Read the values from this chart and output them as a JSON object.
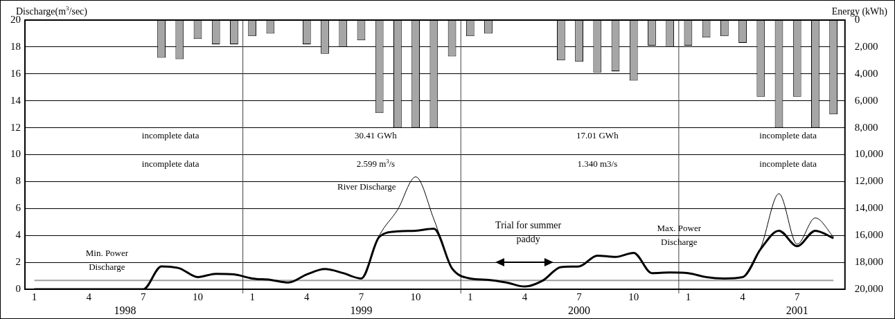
{
  "chart_data": {
    "type": "bar",
    "ylabel": "Discharge(m$^{3}$/sec)",
    "y2label": "Energy (kWh)",
    "x": [
      "1998-01",
      "1998-02",
      "1998-03",
      "1998-04",
      "1998-05",
      "1998-06",
      "1998-07",
      "1998-08",
      "1998-09",
      "1998-10",
      "1998-11",
      "1998-12",
      "1999-01",
      "1999-02",
      "1999-03",
      "1999-04",
      "1999-05",
      "1999-06",
      "1999-07",
      "1999-08",
      "1999-09",
      "1999-10",
      "1999-11",
      "1999-12",
      "2000-01",
      "2000-02",
      "2000-03",
      "2000-04",
      "2000-05",
      "2000-06",
      "2000-07",
      "2000-08",
      "2000-09",
      "2000-10",
      "2000-11",
      "2000-12",
      "2001-01",
      "2001-02",
      "2001-03",
      "2001-04",
      "2001-05",
      "2001-06",
      "2001-07",
      "2001-08",
      "2001-09"
    ],
    "xlim": [
      "1997-12-16",
      "2001-09-20"
    ],
    "xticks": [
      {
        "value": "1998-01",
        "label": "1"
      },
      {
        "value": "1998-04",
        "label": "4"
      },
      {
        "value": "1998-07",
        "label": "7"
      },
      {
        "value": "1998-10",
        "label": "10"
      },
      {
        "value": "1999-01",
        "label": "1"
      },
      {
        "value": "1999-04",
        "label": "4"
      },
      {
        "value": "1999-07",
        "label": "7"
      },
      {
        "value": "1999-10",
        "label": "10"
      },
      {
        "value": "2000-01",
        "label": "1"
      },
      {
        "value": "2000-04",
        "label": "4"
      },
      {
        "value": "2000-07",
        "label": "7"
      },
      {
        "value": "2000-10",
        "label": "10"
      },
      {
        "value": "2001-01",
        "label": "1"
      },
      {
        "value": "2001-04",
        "label": "4"
      },
      {
        "value": "2001-07",
        "label": "7"
      }
    ],
    "ylim": [
      0,
      20
    ],
    "yticks": [
      0,
      2,
      4,
      6,
      8,
      10,
      12,
      14,
      16,
      18,
      20
    ],
    "y2lim": [
      20000,
      0
    ],
    "y2ticks": [
      0,
      {
        "value": 2000,
        "label": "2,000"
      },
      {
        "value": 4000,
        "label": "4,000"
      },
      {
        "value": 6000,
        "label": "6,000"
      },
      {
        "value": 8000,
        "label": "8,000"
      },
      {
        "value": 10000,
        "label": "10,000"
      },
      {
        "value": 12000,
        "label": "12,000"
      },
      {
        "value": 14000,
        "label": "14,000"
      },
      {
        "value": 16000,
        "label": "16,000"
      },
      {
        "value": 18000,
        "label": "18,000"
      },
      {
        "value": 20000,
        "label": "20,000"
      }
    ],
    "series": [
      {
        "axis": "y2",
        "color": "#a6a6a6",
        "values": [
          null,
          null,
          null,
          null,
          null,
          null,
          null,
          2800,
          2900,
          1400,
          1800,
          1800,
          1200,
          1000,
          null,
          1800,
          2500,
          2000,
          1500,
          6900,
          8000,
          8000,
          8000,
          2700,
          1200,
          1000,
          null,
          null,
          null,
          3000,
          3100,
          3900,
          3800,
          4500,
          1900,
          2000,
          1900,
          1300,
          1200,
          1700,
          5700,
          8000,
          5700,
          8000,
          7000
        ]
      },
      {
        "type": "line",
        "color": "#000000",
        "values": [
          0,
          0,
          0,
          0,
          0,
          0,
          0,
          1.7,
          1.55,
          0.9,
          1.15,
          1.1,
          0.8,
          0.7,
          0.5,
          1.1,
          1.5,
          1.2,
          0.8,
          3.9,
          4.3,
          4.35,
          4.5,
          1.55,
          0.8,
          0.7,
          0.5,
          0.2,
          0.65,
          1.65,
          1.7,
          2.5,
          2.4,
          2.7,
          1.2,
          1.25,
          1.2,
          0.9,
          0.8,
          0.9,
          3.0,
          4.35,
          3.2,
          4.35,
          3.8
        ]
      },
      {
        "type": "line",
        "color": "#000000",
        "values": [
          0,
          0,
          0,
          0,
          0,
          0,
          0,
          1.7,
          1.55,
          0.9,
          1.15,
          1.1,
          0.8,
          0.7,
          0.5,
          1.1,
          1.5,
          1.2,
          0.8,
          4.0,
          5.9,
          8.35,
          5.2,
          1.55,
          0.8,
          0.7,
          0.5,
          0.2,
          0.65,
          1.65,
          1.7,
          2.5,
          2.4,
          2.7,
          1.2,
          1.25,
          1.2,
          0.9,
          0.8,
          0.9,
          3.1,
          7.1,
          3.35,
          5.3,
          3.9
        ]
      }
    ],
    "ref_lines": [
      {
        "axis": "y",
        "value": 0.65,
        "color": "#a0a0a0"
      },
      {
        "axis": "x",
        "value": "1998-12-16",
        "color": "#404040"
      },
      {
        "axis": "x",
        "value": "1999-12-16",
        "color": "#404040"
      },
      {
        "axis": "x",
        "value": "2000-12-16",
        "color": "#404040"
      }
    ],
    "annotations": [
      "incomplete data",
      "incomplete data",
      "30.41 GWh",
      "2.599 m$^{3}$/s",
      "17.01 GWh",
      "1.340 m3/s",
      "incomplete data",
      "incomplete data",
      "River Discharge",
      "Max. Power Discharge",
      "Min. Power Discharge",
      "Trial for summer paddy",
      "1998",
      "1999",
      "2000",
      "2001"
    ],
    "grid": "y",
    "legend": false,
    "marker": "none"
  }
}
